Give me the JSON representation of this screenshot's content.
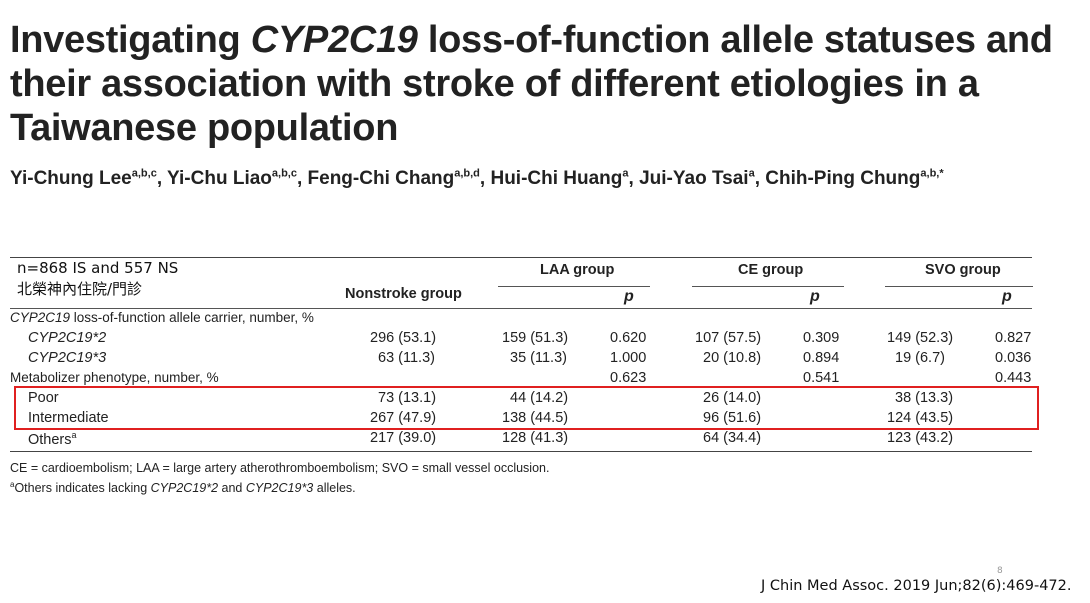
{
  "paper": {
    "title_pre": "Investigating ",
    "title_gene": "CYP2C19",
    "title_post": " loss-of-function allele statuses and their association with stroke of different etiologies in a Taiwanese population",
    "authors": [
      {
        "name": "Yi-Chung Lee",
        "aff": "a,b,c",
        "sep": ", "
      },
      {
        "name": "Yi-Chu Liao",
        "aff": "a,b,c",
        "sep": ", "
      },
      {
        "name": "Feng-Chi Chang",
        "aff": "a,b,d",
        "sep": ", "
      },
      {
        "name": "Hui-Chi Huang",
        "aff": "a",
        "sep": ", "
      },
      {
        "name": "Jui-Yao Tsai",
        "aff": "a",
        "sep": ", "
      },
      {
        "name": "Chih-Ping Chung",
        "aff": "a,b,*",
        "sep": ""
      }
    ]
  },
  "note": {
    "line1": "n=868 IS and 557 NS",
    "line2": "北榮神內住院/門診"
  },
  "table": {
    "col_nonstroke": "Nonstroke group",
    "col_laa": "LAA group",
    "col_ce": "CE group",
    "col_svo": "SVO group",
    "p_label": "p",
    "section1_gene": "CYP2C19",
    "section1_rest": " loss-of-function allele carrier, number, %",
    "section2": "Metabolizer phenotype, number, %",
    "rows": [
      {
        "label": "CYP2C19*2",
        "nonstroke": "296 (53.1)",
        "laa": "159 (51.3)",
        "laa_p": "0.620",
        "ce": "107 (57.5)",
        "ce_p": "0.309",
        "svo": "149 (52.3)",
        "svo_p": "0.827"
      },
      {
        "label": "CYP2C19*3",
        "nonstroke": "63 (11.3)",
        "laa": "35 (11.3)",
        "laa_p": "1.000",
        "ce": "20 (10.8)",
        "ce_p": "0.894",
        "svo": "19 (6.7)",
        "svo_p": "0.036"
      },
      {
        "label": "Poor",
        "nonstroke": "73 (13.1)",
        "laa": "44 (14.2)",
        "laa_p": "",
        "ce": "26 (14.0)",
        "ce_p": "",
        "svo": "38 (13.3)",
        "svo_p": ""
      },
      {
        "label": "Intermediate",
        "nonstroke": "267 (47.9)",
        "laa": "138 (44.5)",
        "laa_p": "",
        "ce": "96 (51.6)",
        "ce_p": "",
        "svo": "124 (43.5)",
        "svo_p": ""
      },
      {
        "label": "Others",
        "label_sup": "a",
        "nonstroke": "217 (39.0)",
        "laa": "128 (41.3)",
        "laa_p": "",
        "ce": "64 (34.4)",
        "ce_p": "",
        "svo": "123 (43.2)",
        "svo_p": ""
      }
    ],
    "section2_p": {
      "laa": "0.623",
      "ce": "0.541",
      "svo": "0.443"
    }
  },
  "footnotes": {
    "abbrev": "CE = cardioembolism; LAA = large artery atherothromboembolism; SVO = small vessel occlusion.",
    "others_sup": "a",
    "others_pre": "Others indicates lacking ",
    "others_g1": "CYP2C19*2",
    "others_mid": " and ",
    "others_g2": "CYP2C19*3",
    "others_post": " alleles."
  },
  "citation": "J Chin Med Assoc. 2019 Jun;82(6):469-472.",
  "page_number": "8",
  "colors": {
    "highlight": "#e02020"
  }
}
